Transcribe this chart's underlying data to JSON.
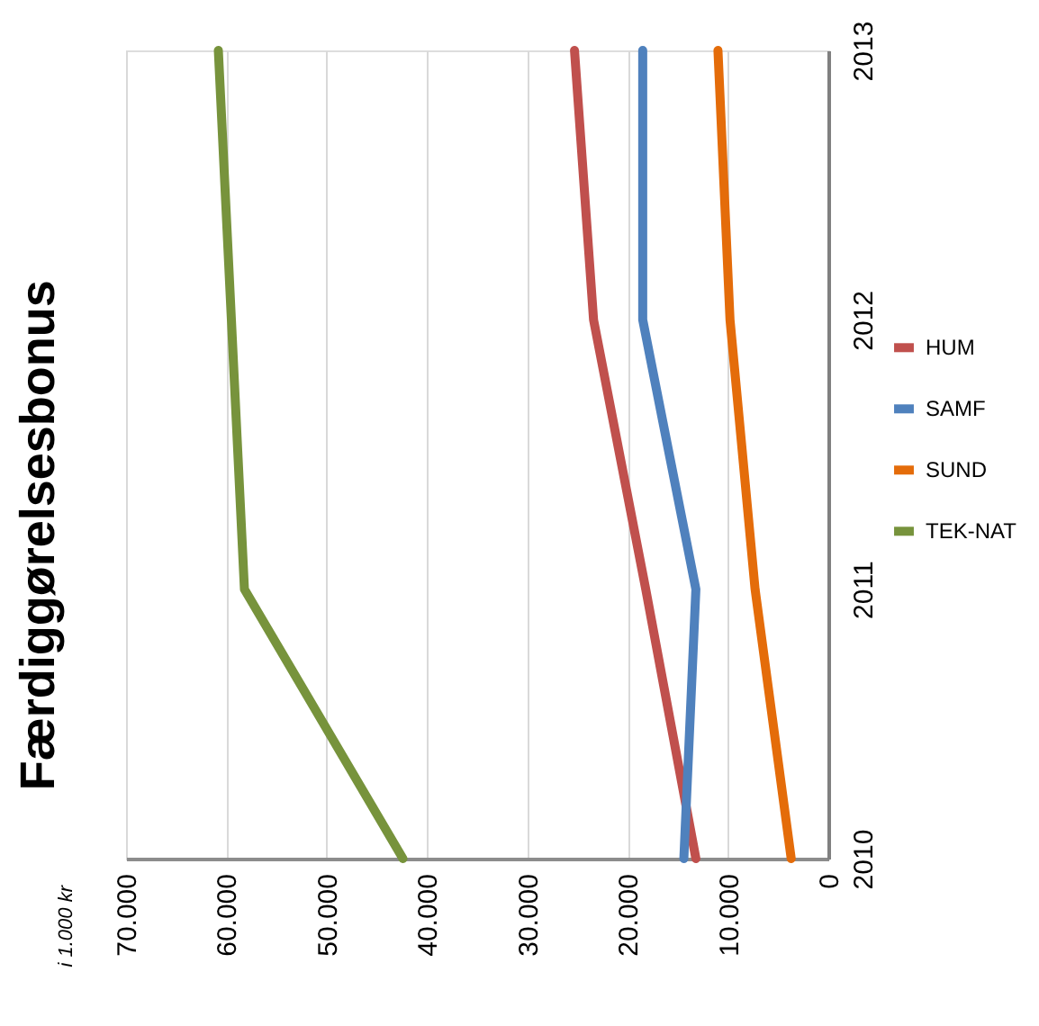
{
  "chart_data": {
    "type": "line",
    "title": "Færdiggørelsesbonus",
    "ylabel": "i 1.000 kr",
    "categories": [
      "2013",
      "2012",
      "2011",
      "2010"
    ],
    "series": [
      {
        "name": "HUM",
        "color": "#c0504d",
        "values": [
          25300,
          23400,
          18200,
          13200
        ]
      },
      {
        "name": "SAMF",
        "color": "#4f81bd",
        "values": [
          18500,
          18500,
          13200,
          14400
        ]
      },
      {
        "name": "SUND",
        "color": "#e46c0a",
        "values": [
          11000,
          9800,
          7300,
          3700
        ]
      },
      {
        "name": "TEK-NAT",
        "color": "#77933c",
        "values": [
          60800,
          59500,
          58200,
          42400
        ]
      }
    ],
    "orientation": "horizontal",
    "xlim": [
      70000,
      0
    ],
    "xticks": [
      {
        "value": 0,
        "label": "0"
      },
      {
        "value": 10000,
        "label": "10.000"
      },
      {
        "value": 20000,
        "label": "20.000"
      },
      {
        "value": 30000,
        "label": "30.000"
      },
      {
        "value": 40000,
        "label": "40.000"
      },
      {
        "value": 50000,
        "label": "50.000"
      },
      {
        "value": 60000,
        "label": "60.000"
      },
      {
        "value": 70000,
        "label": "70.000"
      }
    ],
    "grid": "x",
    "legend": "right",
    "line_style": "solid",
    "marker": "none"
  }
}
